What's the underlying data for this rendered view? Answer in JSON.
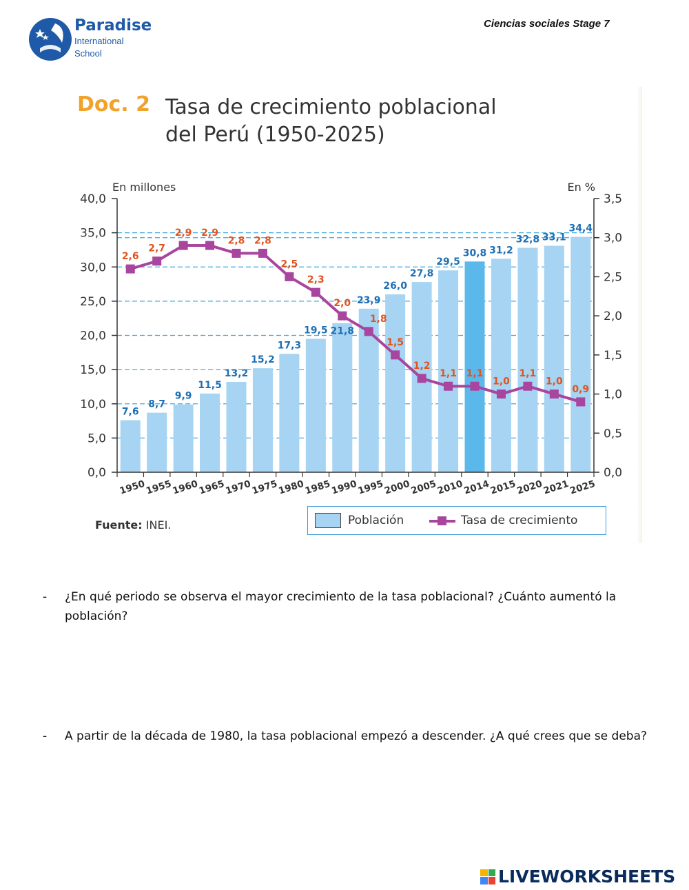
{
  "school": {
    "name": "Paradise",
    "sub_line1": "International",
    "sub_line2": "School"
  },
  "header": {
    "subject": "Ciencias sociales Stage 7"
  },
  "document": {
    "label": "Doc. 2",
    "title_line1": "Tasa de crecimiento poblacional",
    "title_line2": "del Perú (1950-2025)",
    "source_label": "Fuente:",
    "source_value": "INEI."
  },
  "legend": {
    "population": "Población",
    "rate": "Tasa de crecimiento"
  },
  "colors": {
    "bar": "#a6d4f2",
    "bar_highlight": "#5bb8ea",
    "line": "#a8459e",
    "bar_label": "#1e6fb4",
    "rate_label": "#e0541e",
    "grid": "#3fa9e0",
    "doc_orange": "#f0a22c"
  },
  "chart_data": {
    "type": "bar",
    "title": "Tasa de crecimiento poblacional del Perú (1950-2025)",
    "categories": [
      "1950",
      "1955",
      "1960",
      "1965",
      "1970",
      "1975",
      "1980",
      "1985",
      "1990",
      "1995",
      "2000",
      "2005",
      "2010",
      "2014",
      "2015",
      "2020",
      "2021",
      "2025"
    ],
    "highlight_category": "2014",
    "series": [
      {
        "name": "Población",
        "type": "bar",
        "axis": "left",
        "values": [
          7.6,
          8.7,
          9.9,
          11.5,
          13.2,
          15.2,
          17.3,
          19.5,
          21.8,
          23.9,
          26.0,
          27.8,
          29.5,
          30.8,
          31.2,
          32.8,
          33.1,
          34.4
        ],
        "labels": [
          "7,6",
          "8,7",
          "9,9",
          "11,5",
          "13,2",
          "15,2",
          "17,3",
          "19,5",
          "21,8",
          "23,9",
          "26,0",
          "27,8",
          "29,5",
          "30,8",
          "31,2",
          "32,8",
          "33,1",
          "34,4"
        ]
      },
      {
        "name": "Tasa de crecimiento",
        "type": "line",
        "axis": "right",
        "values": [
          2.6,
          2.7,
          2.9,
          2.9,
          2.8,
          2.8,
          2.5,
          2.3,
          2.0,
          1.8,
          1.5,
          1.2,
          1.1,
          1.1,
          1.0,
          1.1,
          1.0,
          0.9
        ],
        "labels": [
          "2,6",
          "2,7",
          "2,9",
          "2,9",
          "2,8",
          "2,8",
          "2,5",
          "2,3",
          "2,0",
          "1,8",
          "1,5",
          "1,2",
          "1,1",
          "1,1",
          "1,0",
          "1,1",
          "1,0",
          "0,9"
        ]
      }
    ],
    "left_axis": {
      "label": "En millones",
      "ylim": [
        0,
        40
      ],
      "ticks": [
        0,
        5,
        10,
        15,
        20,
        25,
        30,
        35,
        40
      ],
      "tick_labels": [
        "0,0",
        "5,0",
        "10,0",
        "15,0",
        "20,0",
        "25,0",
        "30,0",
        "35,0",
        "40,0"
      ]
    },
    "right_axis": {
      "label": "En %",
      "ylim": [
        0,
        3.5
      ],
      "ticks": [
        0,
        0.5,
        1.0,
        1.5,
        2.0,
        2.5,
        3.0,
        3.5
      ],
      "tick_labels": [
        "0,0",
        "0,5",
        "1,0",
        "1,5",
        "2,0",
        "2,5",
        "3,0",
        "3,5"
      ]
    },
    "grid": true,
    "legend_position": "bottom-right"
  },
  "questions": [
    {
      "dash": "-",
      "text": "¿En qué periodo se observa el mayor crecimiento de la tasa poblacional? ¿Cuánto aumentó la población?"
    },
    {
      "dash": "-",
      "text": "A partir de la década de 1980, la tasa poblacional empezó a descender. ¿A qué crees que se deba?"
    }
  ],
  "footer": {
    "brand": "LIVEWORKSHEETS"
  }
}
